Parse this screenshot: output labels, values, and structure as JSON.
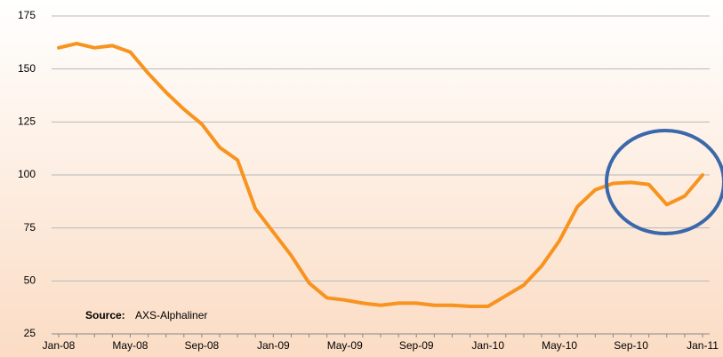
{
  "chart_data": {
    "type": "line",
    "categories": [
      "Jan-08",
      null,
      null,
      null,
      "May-08",
      null,
      null,
      null,
      "Sep-08",
      null,
      null,
      null,
      "Jan-09",
      null,
      null,
      null,
      "May-09",
      null,
      null,
      null,
      "Sep-09",
      null,
      null,
      null,
      "Jan-10",
      null,
      null,
      null,
      "May-10",
      null,
      null,
      null,
      "Sep-10",
      null,
      null,
      null,
      "Jan-11"
    ],
    "values": [
      160,
      162,
      160,
      161,
      158,
      148,
      139,
      131,
      124,
      113,
      107,
      84,
      73,
      62,
      49,
      42,
      41,
      39.5,
      38.5,
      39.5,
      39.5,
      38.5,
      38.5,
      38,
      38,
      43,
      48,
      57,
      69,
      85,
      93,
      96,
      96.5,
      95.5,
      86,
      90,
      100
    ],
    "color": "#f7931e",
    "ylim": [
      25,
      175
    ],
    "yticks": [
      25,
      50,
      75,
      100,
      125,
      150,
      175
    ],
    "grid": true,
    "source_label": "Source:",
    "source": "AXS-Alphaliner"
  }
}
